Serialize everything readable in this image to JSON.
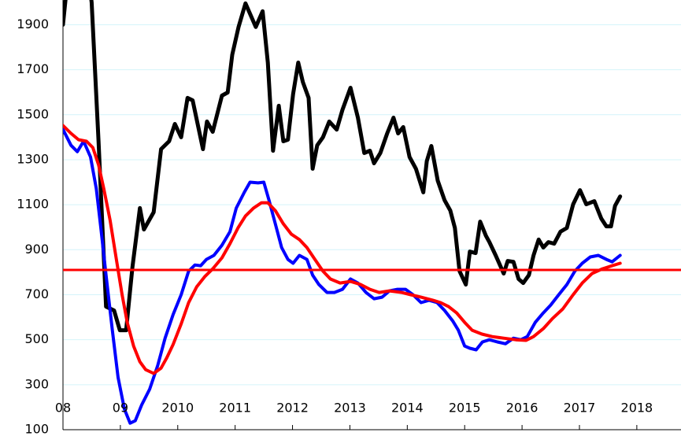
{
  "chart_data": {
    "type": "line",
    "xlim": [
      2008,
      2018.77
    ],
    "ylim": [
      100,
      2010
    ],
    "xticks": [
      {
        "value": 2008,
        "label": "08"
      },
      {
        "value": 2009,
        "label": "09"
      },
      2010,
      2011,
      2012,
      2013,
      2014,
      2015,
      2016,
      2017,
      2018
    ],
    "yticks": [
      100,
      300,
      500,
      700,
      900,
      1100,
      1300,
      1500,
      1700,
      1900
    ],
    "grid": true,
    "grid_color": "#d4f4fa",
    "hline": {
      "value": 810,
      "color": "#ff0000"
    },
    "series": [
      {
        "color": "#000000",
        "width": 5,
        "x": [
          2008.0,
          2008.08,
          2008.45,
          2008.5,
          2008.62,
          2008.75,
          2008.89,
          2008.99,
          2009.1,
          2009.21,
          2009.34,
          2009.41,
          2009.58,
          2009.71,
          2009.85,
          2009.95,
          2010.06,
          2010.17,
          2010.26,
          2010.44,
          2010.51,
          2010.61,
          2010.77,
          2010.87,
          2010.95,
          2011.06,
          2011.18,
          2011.36,
          2011.48,
          2011.57,
          2011.66,
          2011.76,
          2011.84,
          2011.92,
          2012.01,
          2012.1,
          2012.18,
          2012.28,
          2012.35,
          2012.43,
          2012.53,
          2012.64,
          2012.77,
          2012.87,
          2013.01,
          2013.14,
          2013.25,
          2013.35,
          2013.42,
          2013.53,
          2013.65,
          2013.76,
          2013.84,
          2013.93,
          2014.04,
          2014.15,
          2014.28,
          2014.34,
          2014.42,
          2014.53,
          2014.65,
          2014.75,
          2014.83,
          2014.91,
          2015.02,
          2015.09,
          2015.19,
          2015.27,
          2015.37,
          2015.43,
          2015.54,
          2015.68,
          2015.75,
          2015.85,
          2015.94,
          2016.02,
          2016.12,
          2016.2,
          2016.29,
          2016.37,
          2016.46,
          2016.56,
          2016.67,
          2016.78,
          2016.89,
          2017.01,
          2017.12,
          2017.26,
          2017.38,
          2017.47,
          2017.55,
          2017.62,
          2017.71
        ],
        "values": [
          1900,
          2100,
          2100,
          2000,
          1380,
          647,
          630,
          542,
          542,
          822,
          1085,
          990,
          1067,
          1347,
          1382,
          1459,
          1400,
          1575,
          1564,
          1347,
          1470,
          1424,
          1585,
          1599,
          1767,
          1890,
          1995,
          1890,
          1960,
          1732,
          1340,
          1540,
          1382,
          1389,
          1592,
          1732,
          1645,
          1575,
          1260,
          1364,
          1400,
          1470,
          1434,
          1522,
          1620,
          1487,
          1330,
          1340,
          1284,
          1330,
          1417,
          1487,
          1417,
          1445,
          1312,
          1260,
          1155,
          1294,
          1361,
          1207,
          1120,
          1074,
          997,
          805,
          745,
          892,
          885,
          1025,
          962,
          934,
          875,
          794,
          850,
          846,
          770,
          752,
          787,
          875,
          945,
          910,
          934,
          927,
          980,
          997,
          1102,
          1165,
          1102,
          1116,
          1039,
          1004,
          1004,
          1095,
          1137
        ]
      },
      {
        "color": "#0000ff",
        "width": 4,
        "x": [
          2008.0,
          2008.14,
          2008.25,
          2008.36,
          2008.48,
          2008.58,
          2008.66,
          2008.75,
          2008.86,
          2008.96,
          2009.07,
          2009.17,
          2009.26,
          2009.37,
          2009.51,
          2009.65,
          2009.78,
          2009.92,
          2010.06,
          2010.19,
          2010.3,
          2010.4,
          2010.5,
          2010.63,
          2010.77,
          2010.91,
          2011.02,
          2011.16,
          2011.26,
          2011.4,
          2011.5,
          2011.59,
          2011.7,
          2011.81,
          2011.92,
          2012.01,
          2012.12,
          2012.25,
          2012.35,
          2012.46,
          2012.6,
          2012.73,
          2012.87,
          2013.01,
          2013.14,
          2013.28,
          2013.42,
          2013.56,
          2013.69,
          2013.83,
          2013.97,
          2014.1,
          2014.24,
          2014.38,
          2014.52,
          2014.65,
          2014.79,
          2014.89,
          2015.0,
          2015.09,
          2015.2,
          2015.31,
          2015.43,
          2015.57,
          2015.71,
          2015.85,
          2015.98,
          2016.09,
          2016.23,
          2016.37,
          2016.5,
          2016.64,
          2016.78,
          2016.92,
          2017.05,
          2017.19,
          2017.33,
          2017.47,
          2017.57,
          2017.71
        ],
        "values": [
          1435,
          1364,
          1336,
          1382,
          1312,
          1172,
          997,
          787,
          542,
          332,
          192,
          129,
          140,
          210,
          280,
          385,
          507,
          612,
          700,
          805,
          832,
          829,
          857,
          875,
          920,
          980,
          1085,
          1155,
          1200,
          1197,
          1200,
          1120,
          1015,
          910,
          857,
          840,
          875,
          857,
          787,
          745,
          710,
          710,
          724,
          770,
          752,
          710,
          682,
          689,
          717,
          724,
          724,
          700,
          665,
          675,
          665,
          630,
          584,
          542,
          472,
          462,
          455,
          490,
          500,
          490,
          482,
          507,
          500,
          514,
          577,
          619,
          654,
          700,
          745,
          805,
          840,
          868,
          875,
          857,
          846,
          875
        ]
      },
      {
        "color": "#ff0000",
        "width": 4,
        "x": [
          2008.0,
          2008.14,
          2008.27,
          2008.41,
          2008.52,
          2008.62,
          2008.71,
          2008.82,
          2008.93,
          2009.03,
          2009.12,
          2009.23,
          2009.34,
          2009.44,
          2009.58,
          2009.71,
          2009.81,
          2009.92,
          2010.06,
          2010.19,
          2010.33,
          2010.47,
          2010.61,
          2010.77,
          2010.91,
          2011.05,
          2011.18,
          2011.32,
          2011.46,
          2011.57,
          2011.7,
          2011.84,
          2011.98,
          2012.12,
          2012.25,
          2012.39,
          2012.53,
          2012.66,
          2012.83,
          2013.01,
          2013.19,
          2013.35,
          2013.51,
          2013.69,
          2013.9,
          2014.06,
          2014.24,
          2014.45,
          2014.58,
          2014.72,
          2014.86,
          2015.0,
          2015.13,
          2015.3,
          2015.48,
          2015.68,
          2015.89,
          2016.07,
          2016.2,
          2016.37,
          2016.53,
          2016.71,
          2016.89,
          2017.05,
          2017.22,
          2017.4,
          2017.57,
          2017.71
        ],
        "values": [
          1452,
          1417,
          1389,
          1382,
          1354,
          1277,
          1172,
          1032,
          857,
          700,
          577,
          472,
          402,
          367,
          350,
          374,
          420,
          479,
          570,
          665,
          735,
          780,
          815,
          864,
          927,
          997,
          1050,
          1085,
          1109,
          1109,
          1074,
          1015,
          969,
          945,
          910,
          857,
          805,
          770,
          752,
          759,
          745,
          724,
          710,
          717,
          710,
          700,
          689,
          675,
          665,
          647,
          619,
          577,
          542,
          525,
          514,
          507,
          500,
          497,
          514,
          549,
          594,
          637,
          700,
          752,
          794,
          815,
          829,
          840
        ]
      }
    ]
  }
}
